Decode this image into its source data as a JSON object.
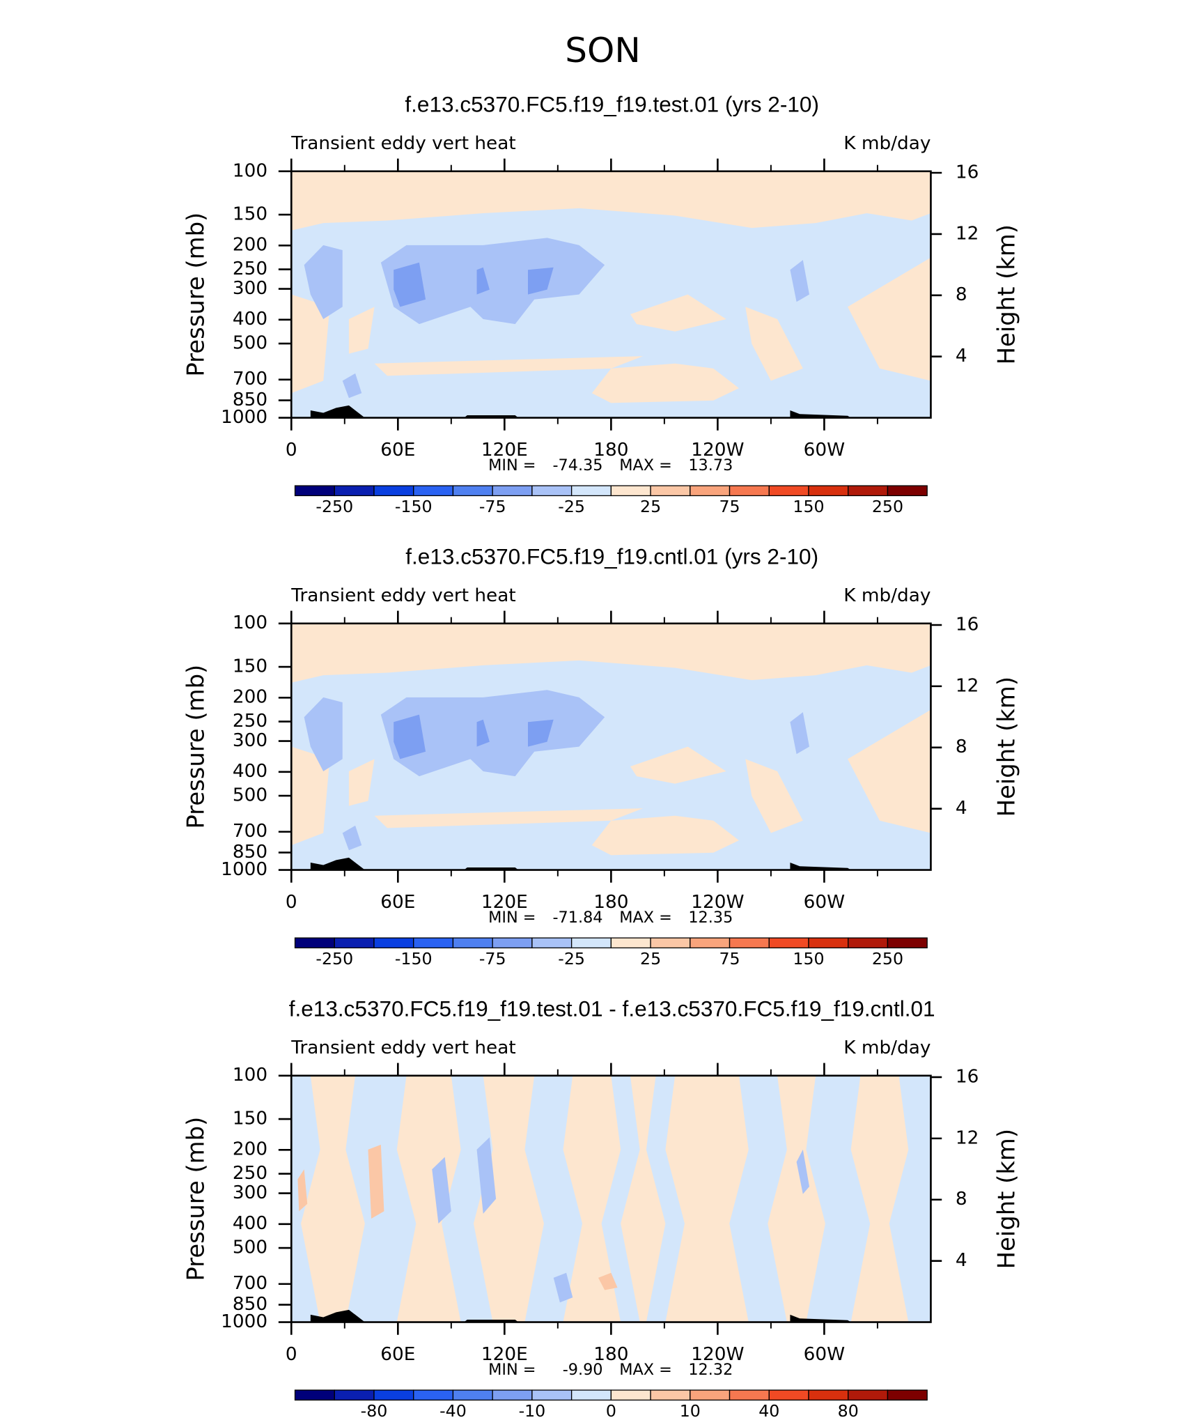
{
  "title": "SON",
  "chart_data": [
    {
      "type": "contour",
      "title": "f.e13.c5370.FC5.f19_f19.test.01 (yrs 2-10)",
      "left_string": "Transient eddy vert heat",
      "right_string": "K mb/day",
      "ylabel": "Pressure (mb)",
      "y2label": "Height (km)",
      "xlim": [
        0,
        360
      ],
      "xticks": [
        0,
        {
          "value": 60,
          "label": "60E"
        },
        {
          "value": 120,
          "label": "120E"
        },
        180,
        {
          "value": 240,
          "label": "120W"
        },
        {
          "value": 300,
          "label": "60W"
        }
      ],
      "xminorticks": [
        30,
        90,
        150,
        210,
        270,
        330
      ],
      "ylim": [
        1000,
        100
      ],
      "ylog": true,
      "yticks": [
        100,
        150,
        200,
        250,
        300,
        400,
        500,
        700,
        850,
        1000
      ],
      "y2lim": [
        0,
        16.1
      ],
      "y2ticks": [
        4,
        8,
        12,
        16
      ],
      "min_label": "MIN =",
      "min": -74.35,
      "max_label": "MAX =",
      "max": 13.73,
      "colorbar": {
        "colors": [
          "#00007a",
          "#0a1fb0",
          "#0a3fe0",
          "#2a62f2",
          "#4f80f0",
          "#7d9ff2",
          "#a9c2f7",
          "#d3e6fb",
          "#fde6cf",
          "#fbc7a6",
          "#f9a47c",
          "#f67850",
          "#f04a24",
          "#d8300e",
          "#b01a0a",
          "#7d0000"
        ],
        "ticks": [
          -250,
          -150,
          -75,
          -25,
          25,
          75,
          150,
          250
        ]
      }
    },
    {
      "type": "contour",
      "title": "f.e13.c5370.FC5.f19_f19.cntl.01 (yrs 2-10)",
      "left_string": "Transient eddy vert heat",
      "right_string": "K mb/day",
      "ylabel": "Pressure (mb)",
      "y2label": "Height (km)",
      "xlim": [
        0,
        360
      ],
      "xticks": [
        0,
        {
          "value": 60,
          "label": "60E"
        },
        {
          "value": 120,
          "label": "120E"
        },
        180,
        {
          "value": 240,
          "label": "120W"
        },
        {
          "value": 300,
          "label": "60W"
        }
      ],
      "xminorticks": [
        30,
        90,
        150,
        210,
        270,
        330
      ],
      "ylim": [
        1000,
        100
      ],
      "ylog": true,
      "yticks": [
        100,
        150,
        200,
        250,
        300,
        400,
        500,
        700,
        850,
        1000
      ],
      "y2lim": [
        0,
        16.1
      ],
      "y2ticks": [
        4,
        8,
        12,
        16
      ],
      "min_label": "MIN =",
      "min": -71.84,
      "max_label": "MAX =",
      "max": 12.35,
      "colorbar": {
        "colors": [
          "#00007a",
          "#0a1fb0",
          "#0a3fe0",
          "#2a62f2",
          "#4f80f0",
          "#7d9ff2",
          "#a9c2f7",
          "#d3e6fb",
          "#fde6cf",
          "#fbc7a6",
          "#f9a47c",
          "#f67850",
          "#f04a24",
          "#d8300e",
          "#b01a0a",
          "#7d0000"
        ],
        "ticks": [
          -250,
          -150,
          -75,
          -25,
          25,
          75,
          150,
          250
        ]
      }
    },
    {
      "type": "contour_diff",
      "title": "f.e13.c5370.FC5.f19_f19.test.01 - f.e13.c5370.FC5.f19_f19.cntl.01",
      "left_string": "Transient eddy vert heat",
      "right_string": "K mb/day",
      "ylabel": "Pressure (mb)",
      "y2label": "Height (km)",
      "xlim": [
        0,
        360
      ],
      "xticks": [
        0,
        {
          "value": 60,
          "label": "60E"
        },
        {
          "value": 120,
          "label": "120E"
        },
        180,
        {
          "value": 240,
          "label": "120W"
        },
        {
          "value": 300,
          "label": "60W"
        }
      ],
      "xminorticks": [
        30,
        90,
        150,
        210,
        270,
        330
      ],
      "ylim": [
        1000,
        100
      ],
      "ylog": true,
      "yticks": [
        100,
        150,
        200,
        250,
        300,
        400,
        500,
        700,
        850,
        1000
      ],
      "y2lim": [
        0,
        16.1
      ],
      "y2ticks": [
        4,
        8,
        12,
        16
      ],
      "min_label": "MIN =",
      "min": {
        "value": -9.9,
        "label": "-9.90"
      },
      "max_label": "MAX =",
      "max": 12.32,
      "colorbar": {
        "colors": [
          "#00007a",
          "#0a1fb0",
          "#0a3fe0",
          "#2a62f2",
          "#4f80f0",
          "#7d9ff2",
          "#a9c2f7",
          "#d3e6fb",
          "#fde6cf",
          "#fbc7a6",
          "#f9a47c",
          "#f67850",
          "#f04a24",
          "#d8300e",
          "#b01a0a",
          "#7d0000"
        ],
        "ticks": [
          -80,
          -40,
          -10,
          0,
          10,
          40,
          80
        ]
      }
    }
  ]
}
